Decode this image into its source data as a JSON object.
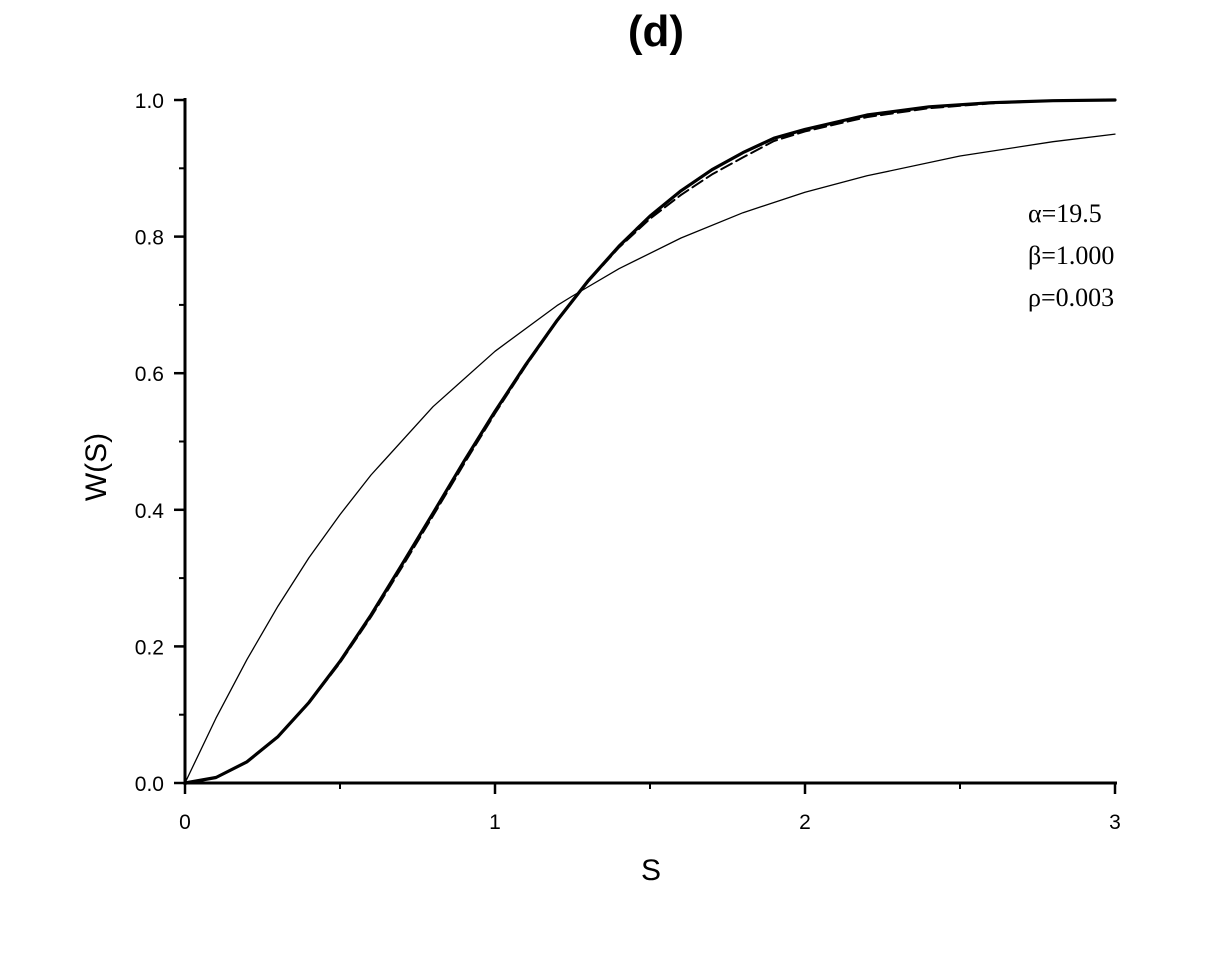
{
  "chart_data": {
    "type": "line",
    "title": "(d)",
    "xlabel": "S",
    "ylabel": "W(S)",
    "xlim": [
      0,
      3
    ],
    "ylim": [
      0,
      1
    ],
    "xticks": [
      0,
      1,
      2,
      3
    ],
    "xtick_labels": [
      "0",
      "1",
      "2",
      "3"
    ],
    "yticks": [
      0,
      0.2,
      0.4,
      0.6,
      0.8,
      1.0
    ],
    "ytick_labels": [
      "0.0",
      "0.2",
      "0.4",
      "0.6",
      "0.8",
      "1.0"
    ],
    "grid": false,
    "annotations": [
      "α=19.5",
      "β=1.000",
      "ρ=0.003"
    ],
    "series": [
      {
        "style": "thin",
        "x": [
          0,
          0.1,
          0.2,
          0.3,
          0.4,
          0.5,
          0.6,
          0.8,
          1.0,
          1.2,
          1.25,
          1.4,
          1.6,
          1.8,
          2.0,
          2.2,
          2.5,
          2.8,
          3.0
        ],
        "y": [
          0,
          0.095,
          0.181,
          0.259,
          0.33,
          0.393,
          0.451,
          0.551,
          0.632,
          0.699,
          0.713,
          0.753,
          0.798,
          0.835,
          0.865,
          0.889,
          0.918,
          0.939,
          0.95
        ]
      },
      {
        "style": "thick",
        "x": [
          0,
          0.1,
          0.2,
          0.3,
          0.4,
          0.5,
          0.6,
          0.7,
          0.8,
          0.9,
          1.0,
          1.1,
          1.2,
          1.3,
          1.4,
          1.5,
          1.6,
          1.7,
          1.8,
          1.9,
          2.0,
          2.2,
          2.4,
          2.6,
          2.8,
          3.0
        ],
        "y": [
          0,
          0.008,
          0.031,
          0.068,
          0.118,
          0.178,
          0.246,
          0.32,
          0.395,
          0.471,
          0.544,
          0.613,
          0.677,
          0.735,
          0.786,
          0.83,
          0.867,
          0.898,
          0.923,
          0.944,
          0.957,
          0.978,
          0.99,
          0.996,
          0.999,
          1.0
        ]
      },
      {
        "style": "dashed",
        "x": [
          0,
          0.1,
          0.2,
          0.3,
          0.4,
          0.5,
          0.6,
          0.7,
          0.8,
          0.9,
          1.0,
          1.1,
          1.2,
          1.3,
          1.4,
          1.5,
          1.6,
          1.7,
          1.8,
          1.9,
          2.0,
          2.2,
          2.4,
          2.6,
          2.8,
          3.0
        ],
        "y": [
          0,
          0.008,
          0.031,
          0.068,
          0.117,
          0.176,
          0.243,
          0.316,
          0.391,
          0.467,
          0.541,
          0.611,
          0.676,
          0.734,
          0.784,
          0.826,
          0.861,
          0.891,
          0.916,
          0.94,
          0.954,
          0.975,
          0.988,
          0.995,
          0.999,
          1.0
        ]
      }
    ]
  }
}
